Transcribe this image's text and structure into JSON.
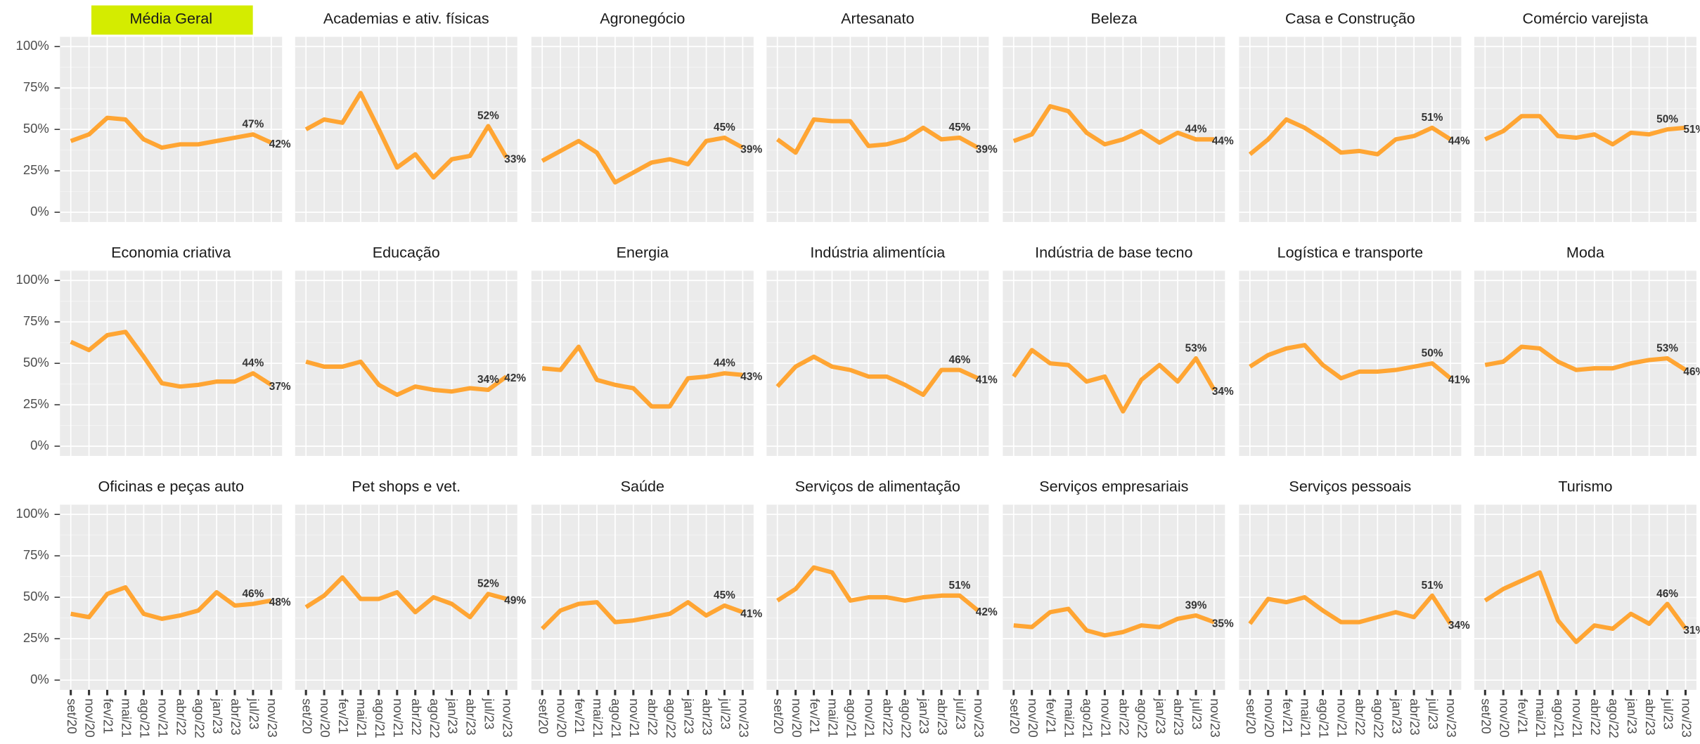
{
  "chart_data": {
    "type": "line",
    "color": "#ffa533",
    "categories": [
      "set/20",
      "nov/20",
      "fev/21",
      "mai/21",
      "ago/21",
      "nov/21",
      "abr/22",
      "ago/22",
      "jan/23",
      "abr/23",
      "jul/23",
      "nov/23"
    ],
    "ylim": [
      0,
      100
    ],
    "yticks": [
      {
        "value": 0,
        "label": "0%"
      },
      {
        "value": 25,
        "label": "25%"
      },
      {
        "value": 50,
        "label": "50%"
      },
      {
        "value": 75,
        "label": "75%"
      },
      {
        "value": 100,
        "label": "100%"
      }
    ],
    "grid": true,
    "facets": [
      {
        "title": "Média Geral",
        "highlight": true,
        "values": [
          43,
          47,
          57,
          56,
          44,
          39,
          41,
          41,
          43,
          45,
          47,
          42
        ],
        "value_labels": [
          null,
          null,
          null,
          null,
          null,
          null,
          null,
          null,
          null,
          null,
          "47%",
          "42%"
        ]
      },
      {
        "title": "Academias e ativ. físicas",
        "values": [
          50,
          56,
          54,
          72,
          50,
          27,
          35,
          21,
          32,
          34,
          52,
          33
        ],
        "value_labels": [
          null,
          null,
          null,
          null,
          null,
          null,
          null,
          null,
          null,
          null,
          "52%",
          "33%"
        ]
      },
      {
        "title": "Agronegócio",
        "values": [
          31,
          37,
          43,
          36,
          18,
          24,
          30,
          32,
          29,
          43,
          45,
          39
        ],
        "value_labels": [
          null,
          null,
          null,
          null,
          null,
          null,
          null,
          null,
          null,
          null,
          "45%",
          "39%"
        ]
      },
      {
        "title": "Artesanato",
        "values": [
          44,
          36,
          56,
          55,
          55,
          40,
          41,
          44,
          51,
          44,
          45,
          39
        ],
        "value_labels": [
          null,
          null,
          null,
          null,
          null,
          null,
          null,
          null,
          null,
          null,
          "45%",
          "39%"
        ]
      },
      {
        "title": "Beleza",
        "values": [
          43,
          47,
          64,
          61,
          48,
          41,
          44,
          49,
          42,
          48,
          44,
          44
        ],
        "value_labels": [
          null,
          null,
          null,
          null,
          null,
          null,
          null,
          null,
          null,
          null,
          "44%",
          "44%"
        ]
      },
      {
        "title": "Casa e Construção",
        "values": [
          35,
          44,
          56,
          51,
          44,
          36,
          37,
          35,
          44,
          46,
          51,
          44
        ],
        "value_labels": [
          null,
          null,
          null,
          null,
          null,
          null,
          null,
          null,
          null,
          null,
          "51%",
          "44%"
        ]
      },
      {
        "title": "Comércio varejista",
        "values": [
          44,
          49,
          58,
          58,
          46,
          45,
          47,
          41,
          48,
          47,
          50,
          51
        ],
        "value_labels": [
          null,
          null,
          null,
          null,
          null,
          null,
          null,
          null,
          null,
          null,
          "50%",
          "51%"
        ]
      },
      {
        "title": "Economia criativa",
        "values": [
          63,
          58,
          67,
          69,
          54,
          38,
          36,
          37,
          39,
          39,
          44,
          37
        ],
        "value_labels": [
          null,
          null,
          null,
          null,
          null,
          null,
          null,
          null,
          null,
          null,
          "44%",
          "37%"
        ]
      },
      {
        "title": "Educação",
        "values": [
          51,
          48,
          48,
          51,
          37,
          31,
          36,
          34,
          33,
          35,
          34,
          42
        ],
        "value_labels": [
          null,
          null,
          null,
          null,
          null,
          null,
          null,
          null,
          null,
          null,
          "34%",
          "42%"
        ]
      },
      {
        "title": "Energia",
        "values": [
          47,
          46,
          60,
          40,
          37,
          35,
          24,
          24,
          41,
          42,
          44,
          43
        ],
        "value_labels": [
          null,
          null,
          null,
          null,
          null,
          null,
          null,
          null,
          null,
          null,
          "44%",
          "43%"
        ]
      },
      {
        "title": "Indústria alimentícia",
        "values": [
          36,
          48,
          54,
          48,
          46,
          42,
          42,
          37,
          31,
          46,
          46,
          41
        ],
        "value_labels": [
          null,
          null,
          null,
          null,
          null,
          null,
          null,
          null,
          null,
          null,
          "46%",
          "41%"
        ]
      },
      {
        "title": "Indústria de base tecno",
        "values": [
          42,
          58,
          50,
          49,
          39,
          42,
          21,
          40,
          49,
          39,
          53,
          34
        ],
        "value_labels": [
          null,
          null,
          null,
          null,
          null,
          null,
          null,
          null,
          null,
          null,
          "53%",
          "34%"
        ]
      },
      {
        "title": "Logística e transporte",
        "values": [
          48,
          55,
          59,
          61,
          49,
          41,
          45,
          45,
          46,
          48,
          50,
          41
        ],
        "value_labels": [
          null,
          null,
          null,
          null,
          null,
          null,
          null,
          null,
          null,
          null,
          "50%",
          "41%"
        ]
      },
      {
        "title": "Moda",
        "values": [
          49,
          51,
          60,
          59,
          51,
          46,
          47,
          47,
          50,
          52,
          53,
          46
        ],
        "value_labels": [
          null,
          null,
          null,
          null,
          null,
          null,
          null,
          null,
          null,
          null,
          "53%",
          "46%"
        ]
      },
      {
        "title": "Oficinas e peças auto",
        "values": [
          40,
          38,
          52,
          56,
          40,
          37,
          39,
          42,
          53,
          45,
          46,
          48
        ],
        "value_labels": [
          null,
          null,
          null,
          null,
          null,
          null,
          null,
          null,
          null,
          null,
          "46%",
          "48%"
        ]
      },
      {
        "title": "Pet shops e vet.",
        "values": [
          44,
          51,
          62,
          49,
          49,
          53,
          41,
          50,
          46,
          38,
          52,
          49
        ],
        "value_labels": [
          null,
          null,
          null,
          null,
          null,
          null,
          null,
          null,
          null,
          null,
          "52%",
          "49%"
        ]
      },
      {
        "title": "Saúde",
        "values": [
          31,
          42,
          46,
          47,
          35,
          36,
          38,
          40,
          47,
          39,
          45,
          41
        ],
        "value_labels": [
          null,
          null,
          null,
          null,
          null,
          null,
          null,
          null,
          null,
          null,
          "45%",
          "41%"
        ]
      },
      {
        "title": "Serviços de alimentação",
        "values": [
          48,
          55,
          68,
          65,
          48,
          50,
          50,
          48,
          50,
          51,
          51,
          42
        ],
        "value_labels": [
          null,
          null,
          null,
          null,
          null,
          null,
          null,
          null,
          null,
          null,
          "51%",
          "42%"
        ]
      },
      {
        "title": "Serviços empresariais",
        "values": [
          33,
          32,
          41,
          43,
          30,
          27,
          29,
          33,
          32,
          37,
          39,
          35
        ],
        "value_labels": [
          null,
          null,
          null,
          null,
          null,
          null,
          null,
          null,
          null,
          null,
          "39%",
          "35%"
        ]
      },
      {
        "title": "Serviços pessoais",
        "values": [
          34,
          49,
          47,
          50,
          42,
          35,
          35,
          38,
          41,
          38,
          51,
          34
        ],
        "value_labels": [
          null,
          null,
          null,
          null,
          null,
          null,
          null,
          null,
          null,
          null,
          "51%",
          "34%"
        ]
      },
      {
        "title": "Turismo",
        "values": [
          48,
          55,
          60,
          65,
          36,
          23,
          33,
          31,
          40,
          34,
          46,
          31
        ],
        "value_labels": [
          null,
          null,
          null,
          null,
          null,
          null,
          null,
          null,
          null,
          null,
          "46%",
          "31%"
        ]
      }
    ]
  }
}
